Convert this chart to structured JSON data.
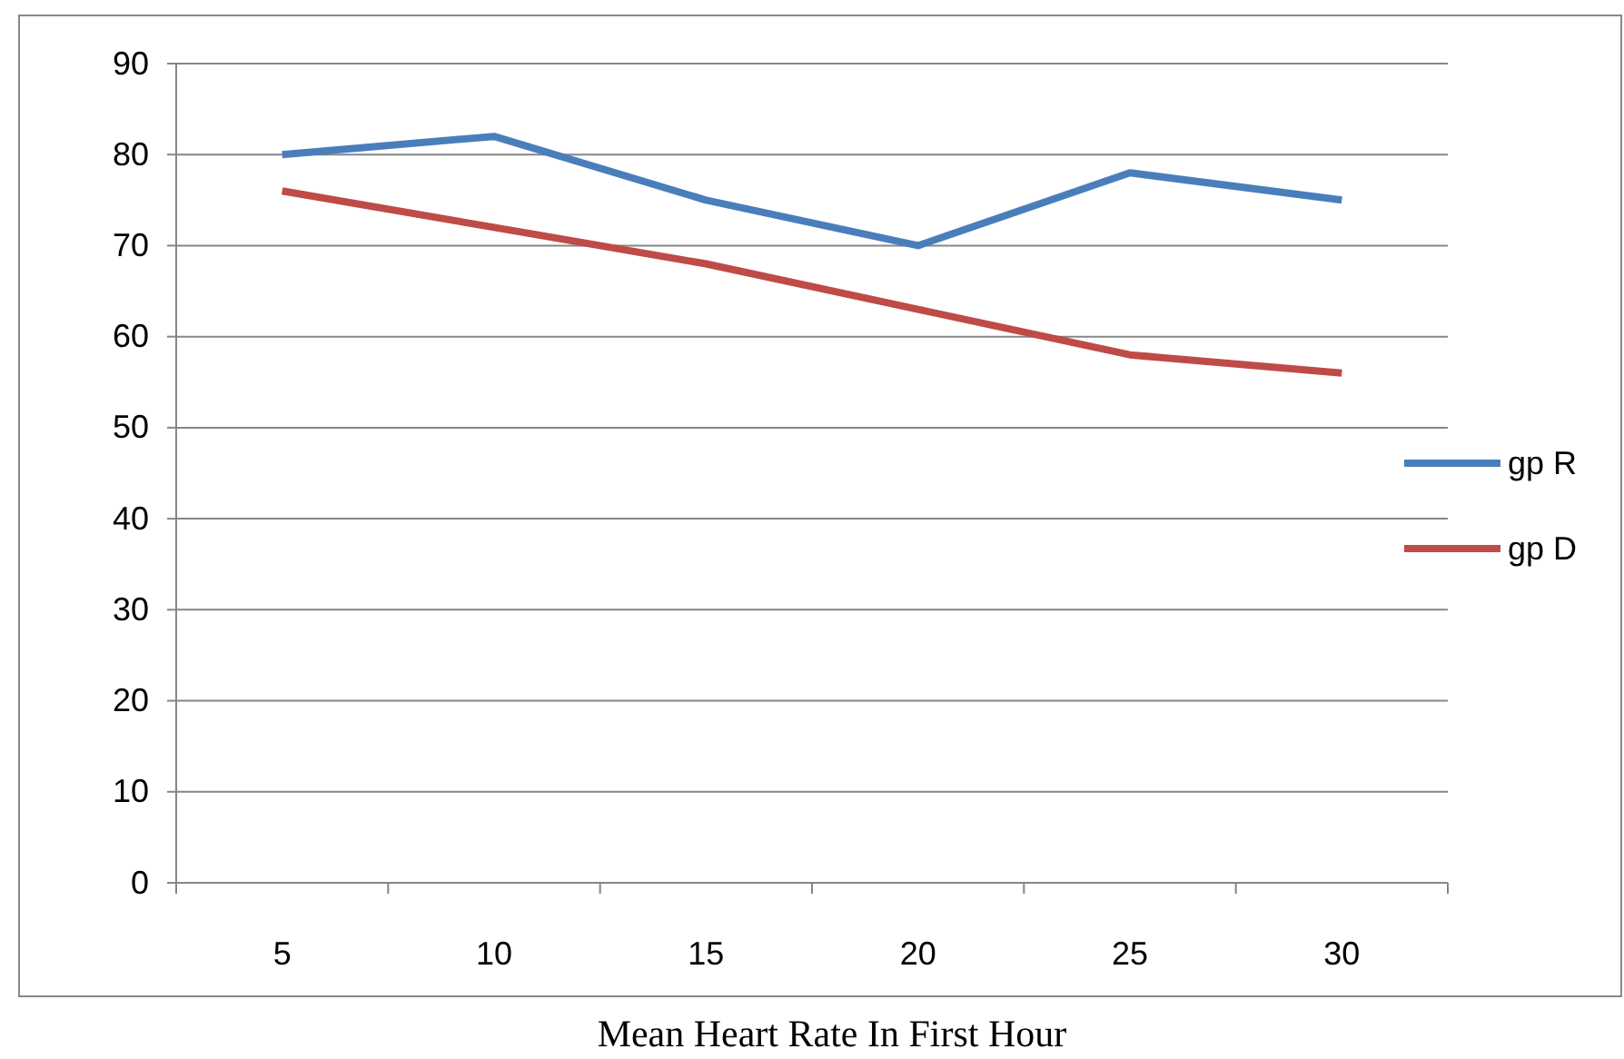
{
  "chart_data": {
    "type": "line",
    "xlabel": "Mean Heart Rate In First Hour",
    "categories": [
      "5",
      "10",
      "15",
      "20",
      "25",
      "30"
    ],
    "series": [
      {
        "name": "gp R",
        "color": "#4a7ebb",
        "values": [
          80,
          82,
          75,
          70,
          78,
          75
        ]
      },
      {
        "name": "gp D",
        "color": "#be4b48",
        "values": [
          76,
          72,
          68,
          63,
          58,
          56
        ]
      }
    ],
    "ylim": [
      0,
      90
    ],
    "yticks": [
      0,
      10,
      20,
      30,
      40,
      50,
      60,
      70,
      80,
      90
    ],
    "grid": "y",
    "legend": "right",
    "marker": "none",
    "line_style": "solid"
  }
}
